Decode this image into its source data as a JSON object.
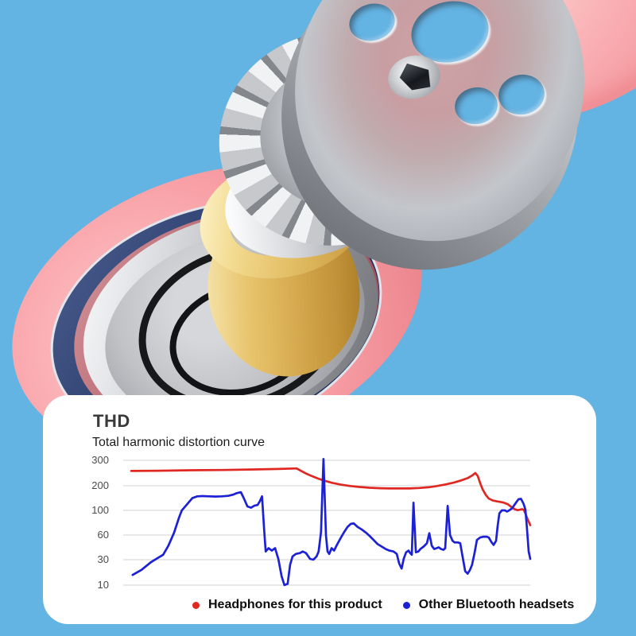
{
  "scene": {
    "description": "Exploded 3D render of headphone ear-cup driver components on blue background",
    "colors": {
      "background": "#63b3e3",
      "cushion_pink": "#f7a3a8",
      "metal_silver": "#c6c8cc",
      "magnet_gold": "#e8c46d",
      "cup_navy": "#2c3e6d",
      "cup_maroon": "#bb6b74",
      "card_white": "#ffffff"
    }
  },
  "panel": {
    "title": "THD",
    "subtitle": "Total harmonic distortion curve"
  },
  "chart_data": {
    "type": "line",
    "title": "THD",
    "subtitle": "Total harmonic distortion curve",
    "xlabel": "",
    "ylabel": "",
    "x_axis_note": "no x tick labels shown; x stored as 0-100 position percent",
    "y_ticks": [
      300,
      200,
      100,
      60,
      30,
      10
    ],
    "y_axis_note": "tick labels equally spaced (non-linear axis)",
    "grid": true,
    "gridline_color": "#d9d9d9",
    "legend_position": "bottom",
    "series": [
      {
        "name": "Headphones for this product",
        "color": "#e02823",
        "points": [
          [
            2,
            258
          ],
          [
            8.8,
            259
          ],
          [
            16.6,
            261
          ],
          [
            24.4,
            262
          ],
          [
            32.2,
            264
          ],
          [
            38.1,
            266
          ],
          [
            42.6,
            268
          ],
          [
            43.6,
            259
          ],
          [
            44.9,
            248
          ],
          [
            46.3,
            238
          ],
          [
            47.9,
            228
          ],
          [
            49.4,
            220
          ],
          [
            51.2,
            212
          ],
          [
            53.3,
            205
          ],
          [
            55.7,
            199
          ],
          [
            58,
            195
          ],
          [
            60.5,
            192
          ],
          [
            63.1,
            190
          ],
          [
            65.4,
            189
          ],
          [
            68,
            189
          ],
          [
            70.3,
            189
          ],
          [
            72.7,
            191
          ],
          [
            75,
            194
          ],
          [
            77.1,
            199
          ],
          [
            79.1,
            205
          ],
          [
            81.1,
            212
          ],
          [
            83,
            221
          ],
          [
            84.6,
            230
          ],
          [
            85.7,
            240
          ],
          [
            86.5,
            250
          ],
          [
            87.1,
            238
          ],
          [
            87.7,
            210
          ],
          [
            88.3,
            185
          ],
          [
            89.1,
            162
          ],
          [
            89.8,
            148
          ],
          [
            90.8,
            140
          ],
          [
            92,
            136
          ],
          [
            93.4,
            132
          ],
          [
            94.5,
            125
          ],
          [
            95.5,
            112
          ],
          [
            96.3,
            104
          ],
          [
            96.9,
            101
          ],
          [
            97.5,
            103
          ],
          [
            98,
            105
          ],
          [
            98.4,
            102
          ],
          [
            98.8,
            95
          ],
          [
            99.2,
            88
          ],
          [
            99.6,
            82
          ],
          [
            100,
            76
          ]
        ]
      },
      {
        "name": "Other Bluetooth headsets",
        "color": "#1d21d6",
        "points": [
          [
            2.3,
            18
          ],
          [
            4.5,
            22
          ],
          [
            6.8,
            28
          ],
          [
            8.8,
            33
          ],
          [
            9.8,
            36
          ],
          [
            11.1,
            47
          ],
          [
            12.5,
            64
          ],
          [
            13.7,
            88
          ],
          [
            14.4,
            100
          ],
          [
            15.2,
            115
          ],
          [
            16.2,
            135
          ],
          [
            17,
            150
          ],
          [
            18.2,
            157
          ],
          [
            19.5,
            158
          ],
          [
            21.1,
            157
          ],
          [
            22.7,
            156
          ],
          [
            24.2,
            157
          ],
          [
            25.8,
            159
          ],
          [
            27,
            164
          ],
          [
            27.9,
            170
          ],
          [
            28.9,
            174
          ],
          [
            29.6,
            150
          ],
          [
            30.5,
            116
          ],
          [
            31.4,
            111
          ],
          [
            32.2,
            119
          ],
          [
            33,
            122
          ],
          [
            33.6,
            138
          ],
          [
            34.1,
            157
          ],
          [
            34.6,
            70
          ],
          [
            35,
            40
          ],
          [
            35.7,
            44
          ],
          [
            36.5,
            41
          ],
          [
            37.3,
            44
          ],
          [
            38.1,
            31
          ],
          [
            38.9,
            17
          ],
          [
            39.6,
            10
          ],
          [
            40.4,
            11
          ],
          [
            41,
            26
          ],
          [
            41.6,
            34
          ],
          [
            42.4,
            37
          ],
          [
            43.4,
            38
          ],
          [
            44.1,
            40
          ],
          [
            44.9,
            38
          ],
          [
            45.9,
            31
          ],
          [
            46.7,
            30
          ],
          [
            47.5,
            34
          ],
          [
            48,
            40
          ],
          [
            48.6,
            65
          ],
          [
            49.2,
            305
          ],
          [
            49.8,
            60
          ],
          [
            50.2,
            40
          ],
          [
            50.6,
            37
          ],
          [
            51.2,
            44
          ],
          [
            51.8,
            41
          ],
          [
            52.5,
            48
          ],
          [
            53.5,
            57
          ],
          [
            54.3,
            65
          ],
          [
            55.1,
            73
          ],
          [
            55.9,
            78
          ],
          [
            56.6,
            79
          ],
          [
            57.6,
            73
          ],
          [
            58.6,
            69
          ],
          [
            59.6,
            64
          ],
          [
            60.5,
            59
          ],
          [
            61.5,
            54
          ],
          [
            62.5,
            49
          ],
          [
            63.5,
            46
          ],
          [
            64.5,
            43
          ],
          [
            65.4,
            41
          ],
          [
            66.4,
            40
          ],
          [
            67.2,
            37
          ],
          [
            67.8,
            27
          ],
          [
            68.4,
            23
          ],
          [
            68.9,
            31
          ],
          [
            69.5,
            39
          ],
          [
            70.1,
            41
          ],
          [
            70.5,
            38
          ],
          [
            70.9,
            36
          ],
          [
            71.3,
            131
          ],
          [
            71.9,
            39
          ],
          [
            72.5,
            40
          ],
          [
            73,
            43
          ],
          [
            73.8,
            46
          ],
          [
            74.6,
            50
          ],
          [
            75.2,
            63
          ],
          [
            75.8,
            47
          ],
          [
            76.4,
            43
          ],
          [
            77,
            44
          ],
          [
            77.5,
            45
          ],
          [
            78.1,
            43
          ],
          [
            78.7,
            42
          ],
          [
            79.1,
            44
          ],
          [
            79.7,
            118
          ],
          [
            80.3,
            60
          ],
          [
            80.9,
            53
          ],
          [
            81.4,
            51
          ],
          [
            82.2,
            51
          ],
          [
            82.8,
            50
          ],
          [
            83.4,
            33
          ],
          [
            84,
            21
          ],
          [
            84.6,
            19
          ],
          [
            85.2,
            22
          ],
          [
            85.7,
            26
          ],
          [
            86.3,
            38
          ],
          [
            86.9,
            54
          ],
          [
            87.7,
            57
          ],
          [
            88.5,
            58
          ],
          [
            89.3,
            58
          ],
          [
            89.8,
            57
          ],
          [
            90.4,
            52
          ],
          [
            91,
            48
          ],
          [
            91.6,
            53
          ],
          [
            92,
            75
          ],
          [
            92.4,
            95
          ],
          [
            93,
            100
          ],
          [
            93.8,
            100
          ],
          [
            94.3,
            98
          ],
          [
            94.9,
            101
          ],
          [
            95.5,
            108
          ],
          [
            96.1,
            122
          ],
          [
            96.7,
            136
          ],
          [
            97.1,
            145
          ],
          [
            97.7,
            147
          ],
          [
            98,
            138
          ],
          [
            98.4,
            125
          ],
          [
            98.8,
            103
          ],
          [
            99.2,
            70
          ],
          [
            99.6,
            40
          ],
          [
            100,
            31
          ]
        ]
      }
    ]
  }
}
